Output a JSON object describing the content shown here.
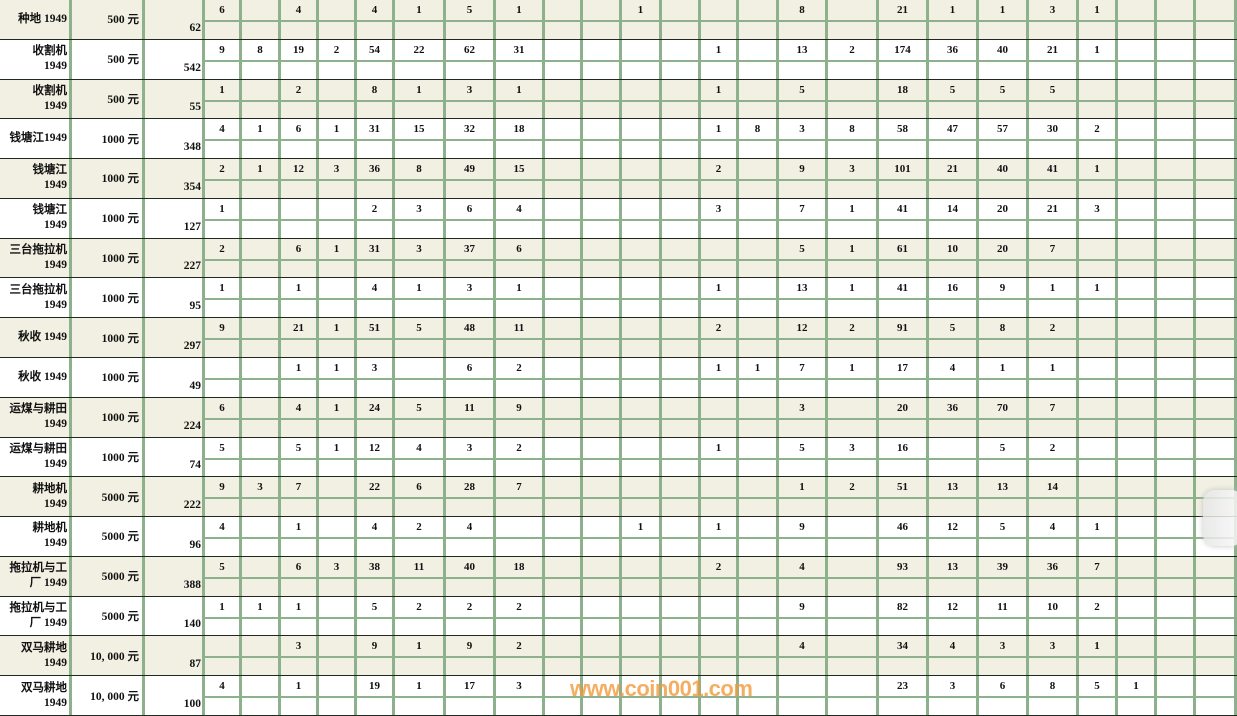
{
  "colors": {
    "band": "#f1f0e2",
    "grid": "#8db08d",
    "watermark": "#f39a3a"
  },
  "watermark": "www.coin001.com",
  "rows": [
    {
      "name": [
        "种地 1949"
      ],
      "denom": "500 元",
      "total": "62",
      "cells": [
        "6",
        "",
        "4",
        "",
        "4",
        "1",
        "5",
        "1",
        "",
        "",
        "1",
        "",
        "",
        "",
        "8",
        "",
        "21",
        "1",
        "1",
        "3",
        "1",
        "",
        "",
        ""
      ]
    },
    {
      "name": [
        "收割机",
        "1949"
      ],
      "denom": "500 元",
      "total": "542",
      "cells": [
        "9",
        "8",
        "19",
        "2",
        "54",
        "22",
        "62",
        "31",
        "",
        "",
        "",
        "",
        "1",
        "",
        "13",
        "2",
        "174",
        "36",
        "40",
        "21",
        "1",
        "",
        "",
        ""
      ]
    },
    {
      "name": [
        "收割机",
        "1949"
      ],
      "denom": "500 元",
      "total": "55",
      "cells": [
        "1",
        "",
        "2",
        "",
        "8",
        "1",
        "3",
        "1",
        "",
        "",
        "",
        "",
        "1",
        "",
        "5",
        "",
        "18",
        "5",
        "5",
        "5",
        "",
        "",
        "",
        ""
      ]
    },
    {
      "name": [
        "钱塘江1949"
      ],
      "denom": "1000 元",
      "total": "348",
      "cells": [
        "4",
        "1",
        "6",
        "1",
        "31",
        "15",
        "32",
        "18",
        "",
        "",
        "",
        "",
        "1",
        "8",
        "3",
        "8",
        "58",
        "47",
        "57",
        "30",
        "2",
        "",
        "",
        ""
      ]
    },
    {
      "name": [
        "钱塘江",
        "1949"
      ],
      "denom": "1000 元",
      "total": "354",
      "cells": [
        "2",
        "1",
        "12",
        "3",
        "36",
        "8",
        "49",
        "15",
        "",
        "",
        "",
        "",
        "2",
        "",
        "9",
        "3",
        "101",
        "21",
        "40",
        "41",
        "1",
        "",
        "",
        ""
      ]
    },
    {
      "name": [
        "钱塘江",
        "1949"
      ],
      "denom": "1000 元",
      "total": "127",
      "cells": [
        "1",
        "",
        "",
        "",
        "2",
        "3",
        "6",
        "4",
        "",
        "",
        "",
        "",
        "3",
        "",
        "7",
        "1",
        "41",
        "14",
        "20",
        "21",
        "3",
        "",
        "",
        ""
      ]
    },
    {
      "name": [
        "三台拖拉机",
        "1949"
      ],
      "denom": "1000 元",
      "total": "227",
      "cells": [
        "2",
        "",
        "6",
        "1",
        "31",
        "3",
        "37",
        "6",
        "",
        "",
        "",
        "",
        "",
        "",
        "5",
        "1",
        "61",
        "10",
        "20",
        "7",
        "",
        "",
        "",
        ""
      ]
    },
    {
      "name": [
        "三台拖拉机",
        "1949"
      ],
      "denom": "1000 元",
      "total": "95",
      "cells": [
        "1",
        "",
        "1",
        "",
        "4",
        "1",
        "3",
        "1",
        "",
        "",
        "",
        "",
        "1",
        "",
        "13",
        "1",
        "41",
        "16",
        "9",
        "1",
        "1",
        "",
        "",
        ""
      ]
    },
    {
      "name": [
        "秋收 1949"
      ],
      "denom": "1000 元",
      "total": "297",
      "cells": [
        "9",
        "",
        "21",
        "1",
        "51",
        "5",
        "48",
        "11",
        "",
        "",
        "",
        "",
        "2",
        "",
        "12",
        "2",
        "91",
        "5",
        "8",
        "2",
        "",
        "",
        "",
        ""
      ]
    },
    {
      "name": [
        "秋收 1949"
      ],
      "denom": "1000 元",
      "total": "49",
      "cells": [
        "",
        "",
        "1",
        "1",
        "3",
        "",
        "6",
        "2",
        "",
        "",
        "",
        "",
        "1",
        "1",
        "7",
        "1",
        "17",
        "4",
        "1",
        "1",
        "",
        "",
        "",
        ""
      ]
    },
    {
      "name": [
        "运煤与耕田",
        "1949"
      ],
      "denom": "1000 元",
      "total": "224",
      "cells": [
        "6",
        "",
        "4",
        "1",
        "24",
        "5",
        "11",
        "9",
        "",
        "",
        "",
        "",
        "",
        "",
        "3",
        "",
        "20",
        "36",
        "70",
        "7",
        "",
        "",
        "",
        ""
      ]
    },
    {
      "name": [
        "运煤与耕田",
        "1949"
      ],
      "denom": "1000 元",
      "total": "74",
      "cells": [
        "5",
        "",
        "5",
        "1",
        "12",
        "4",
        "3",
        "2",
        "",
        "",
        "",
        "",
        "1",
        "",
        "5",
        "3",
        "16",
        "",
        "5",
        "2",
        "",
        "",
        "",
        ""
      ]
    },
    {
      "name": [
        "耕地机",
        "1949"
      ],
      "denom": "5000 元",
      "total": "222",
      "cells": [
        "9",
        "3",
        "7",
        "",
        "22",
        "6",
        "28",
        "7",
        "",
        "",
        "",
        "",
        "",
        "",
        "1",
        "2",
        "51",
        "13",
        "13",
        "14",
        "",
        "",
        "",
        ""
      ]
    },
    {
      "name": [
        "耕地机",
        "1949"
      ],
      "denom": "5000 元",
      "total": "96",
      "cells": [
        "4",
        "",
        "1",
        "",
        "4",
        "2",
        "4",
        "",
        "",
        "",
        "1",
        "",
        "1",
        "",
        "9",
        "",
        "46",
        "12",
        "5",
        "4",
        "1",
        "",
        "",
        ""
      ]
    },
    {
      "name": [
        "拖拉机与工",
        "厂 1949"
      ],
      "denom": "5000 元",
      "total": "388",
      "cells": [
        "5",
        "",
        "6",
        "3",
        "38",
        "11",
        "40",
        "18",
        "",
        "",
        "",
        "",
        "2",
        "",
        "4",
        "",
        "93",
        "13",
        "39",
        "36",
        "7",
        "",
        "",
        ""
      ]
    },
    {
      "name": [
        "拖拉机与工",
        "厂 1949"
      ],
      "denom": "5000 元",
      "total": "140",
      "cells": [
        "1",
        "1",
        "1",
        "",
        "5",
        "2",
        "2",
        "2",
        "",
        "",
        "",
        "",
        "",
        "",
        "9",
        "",
        "82",
        "12",
        "11",
        "10",
        "2",
        "",
        "",
        ""
      ]
    },
    {
      "name": [
        "双马耕地",
        "1949"
      ],
      "denom": "10, 000 元",
      "total": "87",
      "cells": [
        "",
        "",
        "3",
        "",
        "9",
        "1",
        "9",
        "2",
        "",
        "",
        "",
        "",
        "",
        "",
        "4",
        "",
        "34",
        "4",
        "3",
        "3",
        "1",
        "",
        "",
        ""
      ]
    },
    {
      "name": [
        "双马耕地",
        "1949"
      ],
      "denom": "10, 000 元",
      "total": "100",
      "cells": [
        "4",
        "",
        "1",
        "",
        "19",
        "1",
        "17",
        "3",
        "",
        "",
        "",
        "",
        "",
        "",
        "",
        "",
        "23",
        "3",
        "6",
        "8",
        "5",
        "1",
        "",
        ""
      ]
    }
  ]
}
